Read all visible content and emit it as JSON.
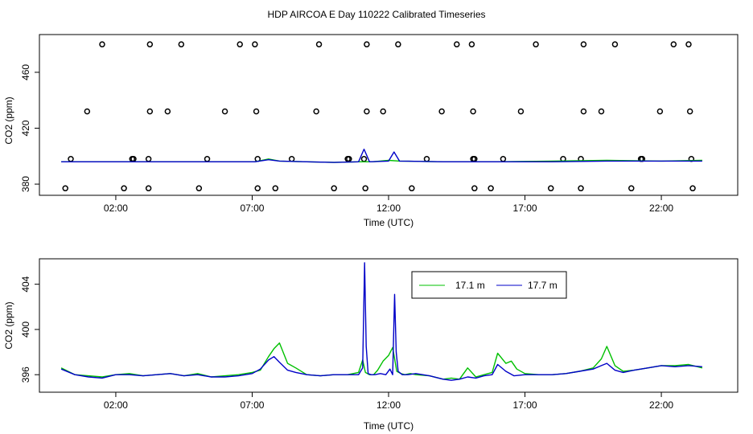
{
  "title": "HDP AIRCOA E  Day 110222  Calibrated Timeseries",
  "chart_data": [
    {
      "type": "scatter",
      "title": "",
      "xlabel": "Time (UTC)",
      "ylabel": "CO2 (ppm)",
      "xlim": [
        -0.8,
        24.8
      ],
      "ylim": [
        372,
        487
      ],
      "x_ticks": [
        2,
        7,
        12,
        17,
        22
      ],
      "x_tick_labels": [
        "02:00",
        "07:00",
        "12:00",
        "17:00",
        "22:00"
      ],
      "y_ticks": [
        380,
        420,
        460
      ],
      "y_tick_labels": [
        "380",
        "420",
        "460"
      ],
      "grid": false,
      "legend": null,
      "markers": [
        {
          "x": 1.5,
          "y": 480
        },
        {
          "x": 3.25,
          "y": 480
        },
        {
          "x": 4.4,
          "y": 480
        },
        {
          "x": 6.55,
          "y": 480
        },
        {
          "x": 7.1,
          "y": 480
        },
        {
          "x": 9.45,
          "y": 480
        },
        {
          "x": 11.2,
          "y": 480
        },
        {
          "x": 12.35,
          "y": 480
        },
        {
          "x": 14.5,
          "y": 480
        },
        {
          "x": 15.05,
          "y": 480
        },
        {
          "x": 17.4,
          "y": 480
        },
        {
          "x": 19.15,
          "y": 480
        },
        {
          "x": 20.3,
          "y": 480
        },
        {
          "x": 22.45,
          "y": 480
        },
        {
          "x": 23.0,
          "y": 480
        },
        {
          "x": 0.95,
          "y": 432
        },
        {
          "x": 3.25,
          "y": 432
        },
        {
          "x": 3.9,
          "y": 432
        },
        {
          "x": 6.0,
          "y": 432
        },
        {
          "x": 7.15,
          "y": 432
        },
        {
          "x": 9.35,
          "y": 432
        },
        {
          "x": 11.2,
          "y": 432
        },
        {
          "x": 11.8,
          "y": 432
        },
        {
          "x": 13.95,
          "y": 432
        },
        {
          "x": 15.1,
          "y": 432
        },
        {
          "x": 16.85,
          "y": 432
        },
        {
          "x": 19.15,
          "y": 432
        },
        {
          "x": 19.8,
          "y": 432
        },
        {
          "x": 21.95,
          "y": 432
        },
        {
          "x": 23.05,
          "y": 432
        },
        {
          "x": 0.35,
          "y": 398
        },
        {
          "x": 2.6,
          "y": 398
        },
        {
          "x": 2.65,
          "y": 398
        },
        {
          "x": 3.2,
          "y": 398
        },
        {
          "x": 5.35,
          "y": 398
        },
        {
          "x": 7.2,
          "y": 398
        },
        {
          "x": 8.45,
          "y": 398
        },
        {
          "x": 10.5,
          "y": 398
        },
        {
          "x": 10.55,
          "y": 398
        },
        {
          "x": 11.1,
          "y": 398
        },
        {
          "x": 13.4,
          "y": 398
        },
        {
          "x": 15.1,
          "y": 398
        },
        {
          "x": 15.15,
          "y": 398
        },
        {
          "x": 16.2,
          "y": 398
        },
        {
          "x": 18.4,
          "y": 398
        },
        {
          "x": 19.05,
          "y": 398
        },
        {
          "x": 21.25,
          "y": 398
        },
        {
          "x": 21.3,
          "y": 398
        },
        {
          "x": 23.1,
          "y": 398
        },
        {
          "x": 0.15,
          "y": 377
        },
        {
          "x": 2.3,
          "y": 377
        },
        {
          "x": 3.2,
          "y": 377
        },
        {
          "x": 5.05,
          "y": 377
        },
        {
          "x": 7.2,
          "y": 377
        },
        {
          "x": 7.85,
          "y": 377
        },
        {
          "x": 10.0,
          "y": 377
        },
        {
          "x": 11.15,
          "y": 377
        },
        {
          "x": 12.85,
          "y": 377
        },
        {
          "x": 15.15,
          "y": 377
        },
        {
          "x": 15.75,
          "y": 377
        },
        {
          "x": 17.95,
          "y": 377
        },
        {
          "x": 19.05,
          "y": 377
        },
        {
          "x": 20.9,
          "y": 377
        },
        {
          "x": 23.15,
          "y": 377
        }
      ],
      "series": [
        {
          "color": "#00c000",
          "x": [
            0,
            2,
            4,
            6,
            7.1,
            7.6,
            8,
            9,
            10,
            10.9,
            11.4,
            12,
            12.4,
            14,
            16,
            18,
            20,
            22,
            23.5
          ],
          "y": [
            396,
            396,
            396,
            396,
            396,
            398,
            396.5,
            396,
            395.5,
            396,
            396,
            397,
            396.5,
            396,
            396,
            396.5,
            397,
            396.5,
            397
          ]
        },
        {
          "color": "#0000c8",
          "x": [
            0,
            2,
            4,
            6,
            7.1,
            7.6,
            8,
            9,
            10,
            10.9,
            11.1,
            11.3,
            12,
            12.2,
            12.4,
            14,
            16,
            18,
            20,
            22,
            23.5
          ],
          "y": [
            396,
            396,
            396,
            396,
            396,
            397.5,
            396.5,
            396,
            395.5,
            396,
            405,
            396,
            396.5,
            403,
            396.5,
            396,
            396,
            396,
            396.5,
            396.5,
            396.5
          ]
        }
      ]
    },
    {
      "type": "line",
      "title": "",
      "xlabel": "Time (UTC)",
      "ylabel": "CO2 (ppm)",
      "xlim": [
        -0.8,
        24.8
      ],
      "ylim": [
        394.45,
        406.25
      ],
      "x_ticks": [
        2,
        7,
        12,
        17,
        22
      ],
      "x_tick_labels": [
        "02:00",
        "07:00",
        "12:00",
        "17:00",
        "22:00"
      ],
      "y_ticks": [
        396,
        400,
        404
      ],
      "y_tick_labels": [
        "396",
        "400",
        "404"
      ],
      "grid": false,
      "legend": "top-right",
      "series": [
        {
          "name": "17.1 m",
          "color": "#00c000",
          "x": [
            0,
            0.5,
            1,
            1.5,
            2,
            2.5,
            3,
            3.5,
            4,
            4.5,
            5,
            5.5,
            6,
            6.5,
            7,
            7.3,
            7.6,
            7.8,
            8.0,
            8.3,
            8.6,
            9.0,
            9.5,
            10,
            10.5,
            10.9,
            11.05,
            11.15,
            11.3,
            11.45,
            11.6,
            11.8,
            12.0,
            12.15,
            12.3,
            12.45,
            12.6,
            12.8,
            13.0,
            13.5,
            14.0,
            14.3,
            14.6,
            14.9,
            15.2,
            15.5,
            15.8,
            16.0,
            16.3,
            16.5,
            16.7,
            17.0,
            17.5,
            18.0,
            18.5,
            19.0,
            19.5,
            19.8,
            20.0,
            20.3,
            20.6,
            21.0,
            21.5,
            22.0,
            22.5,
            23.0,
            23.5
          ],
          "y": [
            396.6,
            396.0,
            395.9,
            395.8,
            396.0,
            396.1,
            395.9,
            396.0,
            396.1,
            395.9,
            396.1,
            395.8,
            395.9,
            396.0,
            396.2,
            396.4,
            397.6,
            398.3,
            398.8,
            397.0,
            396.6,
            396.0,
            395.9,
            396.0,
            396.0,
            396.2,
            397.3,
            396.2,
            396.0,
            396.0,
            396.4,
            397.2,
            397.7,
            398.4,
            396.3,
            396.1,
            396.0,
            396.1,
            396.0,
            395.9,
            395.6,
            395.7,
            395.6,
            396.6,
            395.8,
            396.0,
            396.2,
            397.9,
            397.0,
            397.2,
            396.5,
            396.1,
            396.0,
            396.0,
            396.1,
            396.3,
            396.6,
            397.4,
            398.5,
            396.8,
            396.3,
            396.4,
            396.6,
            396.8,
            396.8,
            396.9,
            396.6
          ]
        },
        {
          "name": "17.7 m",
          "color": "#0000c8",
          "x": [
            0,
            0.5,
            1,
            1.5,
            2,
            2.5,
            3,
            3.5,
            4,
            4.5,
            5,
            5.5,
            6,
            6.5,
            7,
            7.3,
            7.6,
            7.8,
            8.0,
            8.3,
            8.6,
            9.0,
            9.5,
            10,
            10.5,
            10.9,
            11.05,
            11.12,
            11.18,
            11.25,
            11.35,
            11.5,
            11.7,
            11.9,
            12.05,
            12.15,
            12.22,
            12.28,
            12.35,
            12.5,
            12.7,
            13.0,
            13.5,
            14.0,
            14.3,
            14.6,
            14.9,
            15.2,
            15.5,
            15.8,
            16.0,
            16.3,
            16.6,
            17.0,
            17.5,
            18.0,
            18.5,
            19.0,
            19.5,
            19.8,
            20.0,
            20.3,
            20.6,
            21.0,
            21.5,
            22.0,
            22.5,
            23.0,
            23.5
          ],
          "y": [
            396.5,
            396.0,
            395.8,
            395.7,
            396.0,
            396.0,
            395.9,
            396.0,
            396.1,
            395.9,
            396.0,
            395.8,
            395.8,
            395.9,
            396.1,
            396.5,
            397.3,
            397.6,
            397.1,
            396.4,
            396.2,
            396.0,
            395.9,
            396.0,
            396.0,
            396.0,
            396.6,
            405.9,
            398.5,
            396.1,
            396.0,
            396.0,
            396.1,
            396.0,
            396.5,
            396.0,
            403.1,
            398.0,
            396.3,
            396.0,
            396.0,
            396.1,
            395.9,
            395.6,
            395.5,
            395.6,
            395.8,
            395.7,
            395.9,
            396.0,
            396.9,
            396.3,
            395.9,
            396.0,
            396.0,
            396.0,
            396.1,
            396.3,
            396.5,
            396.8,
            397.0,
            396.4,
            396.2,
            396.4,
            396.6,
            396.8,
            396.7,
            396.8,
            396.7
          ]
        }
      ]
    }
  ]
}
